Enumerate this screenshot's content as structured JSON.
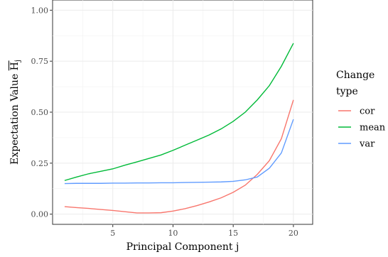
{
  "chart_data": {
    "type": "line",
    "xlabel": "Principal Component j",
    "ylabel": "Expectation Value H",
    "ylabel_subscript": "j",
    "xlim": [
      0,
      21.6
    ],
    "ylim": [
      -0.05,
      1.05
    ],
    "x_ticks": [
      5,
      10,
      15,
      20
    ],
    "x_tick_labels": [
      "5",
      "10",
      "15",
      "20"
    ],
    "y_ticks": [
      0,
      0.25,
      0.5,
      0.75,
      1.0
    ],
    "y_tick_labels": [
      "0.00",
      "0.25",
      "0.50",
      "0.75",
      "1.00"
    ],
    "grid": true,
    "legend_title": [
      "Change",
      "type"
    ],
    "legend_position": "right",
    "x": [
      1,
      2,
      3,
      4,
      5,
      6,
      7,
      8,
      9,
      10,
      11,
      12,
      13,
      14,
      15,
      16,
      17,
      18,
      19,
      20
    ],
    "series": [
      {
        "name": "cor",
        "color": "#F8766D",
        "values": [
          0.037,
          0.032,
          0.028,
          0.023,
          0.018,
          0.012,
          0.006,
          0.006,
          0.007,
          0.015,
          0.027,
          0.042,
          0.06,
          0.08,
          0.107,
          0.142,
          0.195,
          0.262,
          0.37,
          0.56
        ]
      },
      {
        "name": "mean",
        "color": "#00BA38",
        "values": [
          0.165,
          0.182,
          0.198,
          0.21,
          0.222,
          0.24,
          0.256,
          0.273,
          0.29,
          0.313,
          0.338,
          0.363,
          0.388,
          0.418,
          0.455,
          0.5,
          0.56,
          0.63,
          0.725,
          0.838
        ]
      },
      {
        "name": "var",
        "color": "#619CFF",
        "values": [
          0.15,
          0.151,
          0.151,
          0.151,
          0.152,
          0.152,
          0.153,
          0.153,
          0.154,
          0.154,
          0.155,
          0.156,
          0.157,
          0.158,
          0.161,
          0.168,
          0.182,
          0.225,
          0.3,
          0.465
        ]
      }
    ]
  }
}
